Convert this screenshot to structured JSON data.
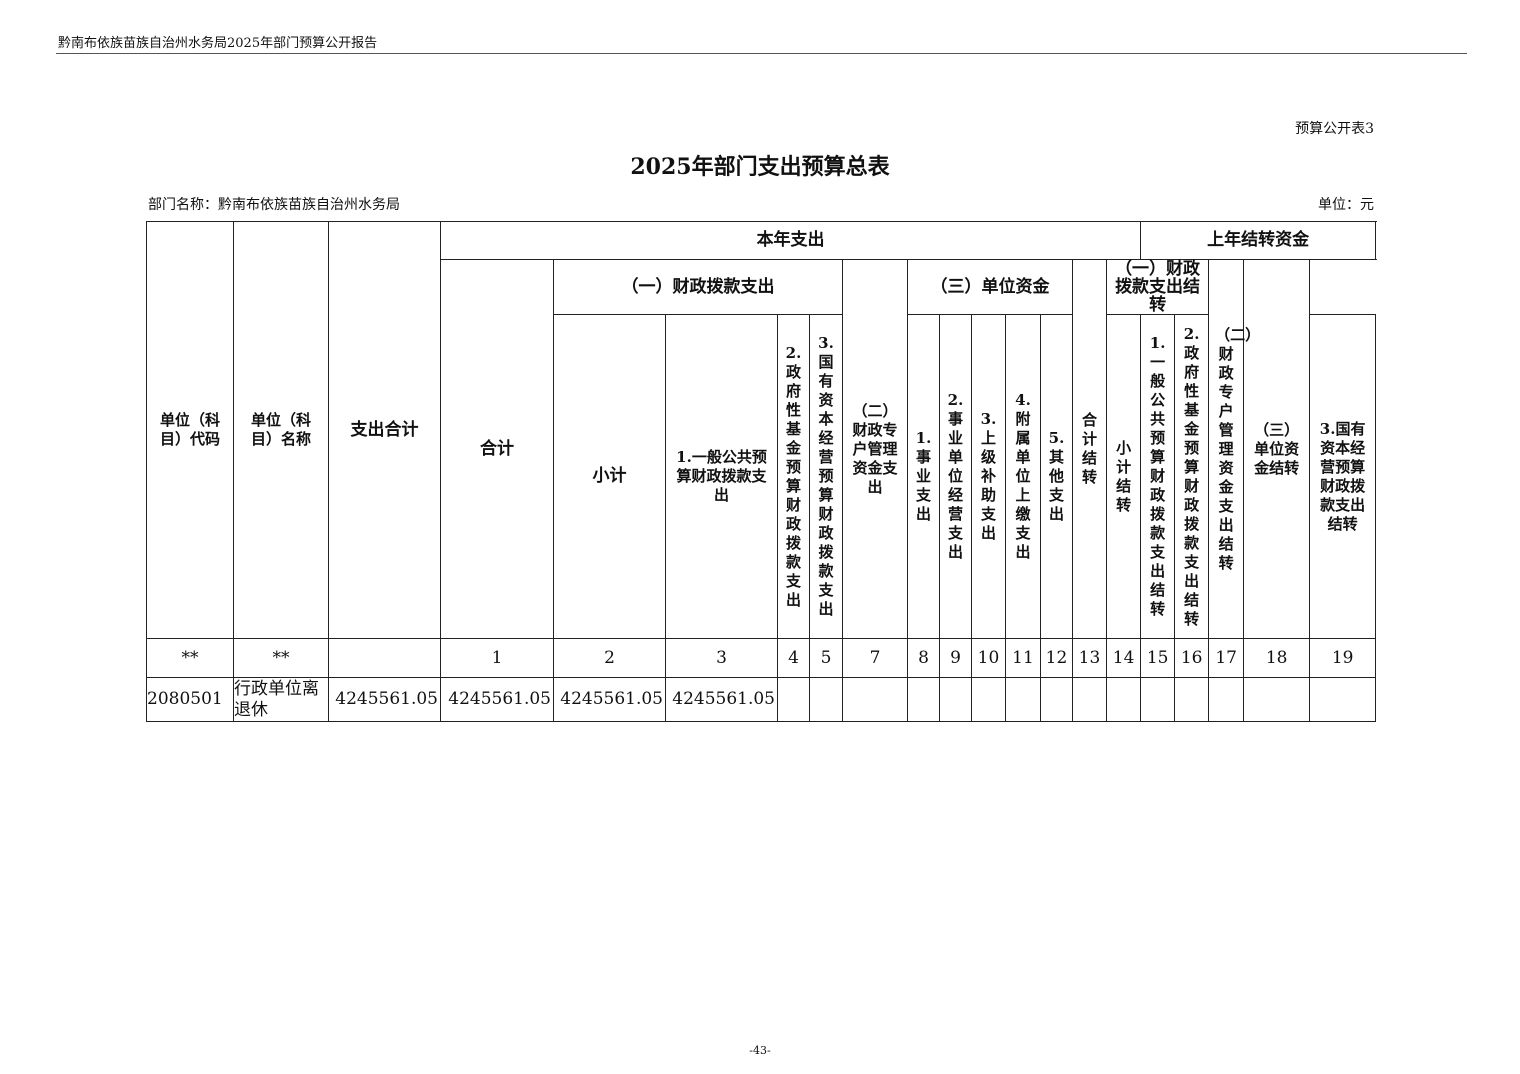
{
  "running_head": "黔南布依族苗族自治州水务局2025年部门预算公开报告",
  "table_no": "预算公开表3",
  "title": "2025年部门支出预算总表",
  "dept_label": "部门名称：黔南布依族苗族自治州水务局",
  "unit_label": "单位：元",
  "headers": {
    "code": "单位（科目）代码",
    "name": "单位（科目）名称",
    "total": "支出合计",
    "current_year": "本年支出",
    "prior_year": "上年结转资金",
    "cy_total": "合计",
    "cy_fiscal": "（一）财政拨款支出",
    "cy_special": "（二）财政专户管理资金支出",
    "cy_unit": "（三）单位资金",
    "py_total": "合计结转",
    "py_fiscal": "（一）财政拨款支出结转",
    "py_special": "（二）财政专户管理资金支出结转",
    "py_unit": "（三）单位资金结转",
    "cy_fiscal_sub": [
      "小计",
      "1.一般公共预算财政拨款支出",
      "2.政府性基金预算财政拨款支出",
      "3.国有资本经营预算财政拨款支出"
    ],
    "cy_unit_sub": [
      "1.事业支出",
      "2.事业单位经营支出",
      "3.上级补助支出",
      "4.附属单位上缴支出",
      "5.其他支出"
    ],
    "py_fiscal_sub": [
      "小计结转",
      "1.一般公共预算财政拨款支出结转",
      "2.政府性基金预算财政拨款支出结转",
      "3.国有资本经营预算财政拨款支出结转"
    ]
  },
  "index_row": [
    "**",
    "**",
    "",
    "1",
    "2",
    "3",
    "4",
    "5",
    "7",
    "8",
    "9",
    "10",
    "11",
    "12",
    "13",
    "14",
    "15",
    "16",
    "17",
    "18",
    "19"
  ],
  "rows": [
    {
      "cells": [
        "2080501",
        "行政单位离退休",
        "4245561.05",
        "4245561.05",
        "4245561.05",
        "4245561.05",
        "",
        "",
        "",
        "",
        "",
        "",
        "",
        "",
        "",
        "",
        "",
        "",
        "",
        "",
        ""
      ]
    }
  ],
  "page_number": "-43-"
}
